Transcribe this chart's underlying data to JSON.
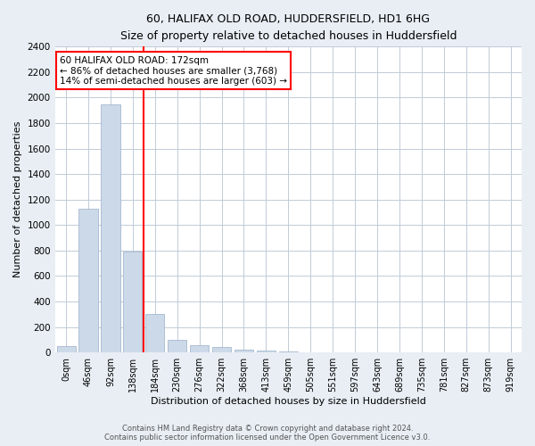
{
  "title_line1": "60, HALIFAX OLD ROAD, HUDDERSFIELD, HD1 6HG",
  "title_line2": "Size of property relative to detached houses in Huddersfield",
  "xlabel": "Distribution of detached houses by size in Huddersfield",
  "ylabel": "Number of detached properties",
  "bar_color": "#ccd9e8",
  "bar_edge_color": "#9ab0c8",
  "categories": [
    "0sqm",
    "46sqm",
    "92sqm",
    "138sqm",
    "184sqm",
    "230sqm",
    "276sqm",
    "322sqm",
    "368sqm",
    "413sqm",
    "459sqm",
    "505sqm",
    "551sqm",
    "597sqm",
    "643sqm",
    "689sqm",
    "735sqm",
    "781sqm",
    "827sqm",
    "873sqm",
    "919sqm"
  ],
  "values": [
    50,
    1130,
    1950,
    790,
    300,
    100,
    55,
    40,
    25,
    12,
    8,
    3,
    2,
    1,
    1,
    1,
    0,
    0,
    0,
    0,
    0
  ],
  "ylim": [
    0,
    2400
  ],
  "yticks": [
    0,
    200,
    400,
    600,
    800,
    1000,
    1200,
    1400,
    1600,
    1800,
    2000,
    2200,
    2400
  ],
  "property_line_x": 3.5,
  "property_label": "60 HALIFAX OLD ROAD: 172sqm",
  "annotation_line1": "← 86% of detached houses are smaller (3,768)",
  "annotation_line2": "14% of semi-detached houses are larger (603) →",
  "annotation_box_color": "white",
  "annotation_box_edge_color": "red",
  "vline_color": "red",
  "footer_line1": "Contains HM Land Registry data © Crown copyright and database right 2024.",
  "footer_line2": "Contains public sector information licensed under the Open Government Licence v3.0.",
  "background_color": "#e8eef4",
  "plot_bg_color": "white",
  "grid_color": "#c0ccd8"
}
